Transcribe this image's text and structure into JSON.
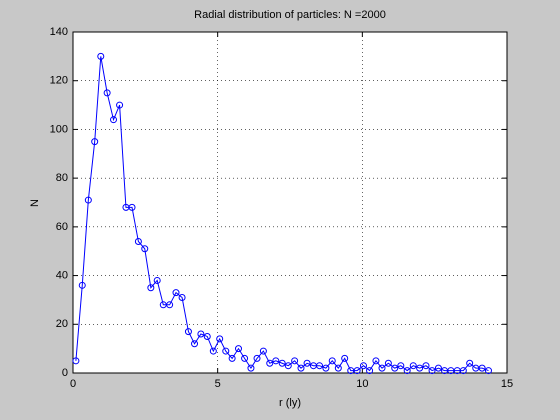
{
  "chart_data": {
    "type": "line",
    "title": "Radial distribution of particles: N =2000",
    "xlabel": "r (ly)",
    "ylabel": "N",
    "x": [
      0.1,
      0.32,
      0.53,
      0.75,
      0.96,
      1.18,
      1.4,
      1.61,
      1.83,
      2.04,
      2.26,
      2.48,
      2.69,
      2.91,
      3.12,
      3.34,
      3.56,
      3.77,
      3.99,
      4.2,
      4.42,
      4.64,
      4.85,
      5.07,
      5.28,
      5.5,
      5.72,
      5.93,
      6.15,
      6.36,
      6.58,
      6.8,
      7.01,
      7.23,
      7.44,
      7.66,
      7.88,
      8.09,
      8.31,
      8.52,
      8.74,
      8.96,
      9.17,
      9.39,
      9.6,
      9.82,
      10.04,
      10.25,
      10.47,
      10.68,
      10.9,
      11.12,
      11.33,
      11.55,
      11.76,
      11.98,
      12.2,
      12.41,
      12.63,
      12.84,
      13.06,
      13.28,
      13.49,
      13.71,
      13.92,
      14.14,
      14.36
    ],
    "series": [
      {
        "color": "#0000ff",
        "marker": "circle",
        "values": [
          5,
          36,
          71,
          95,
          130,
          115,
          104,
          110,
          68,
          68,
          54,
          51,
          35,
          38,
          28,
          28,
          33,
          31,
          17,
          12,
          16,
          15,
          9,
          14,
          9,
          6,
          10,
          6,
          2,
          6,
          9,
          4,
          5,
          4,
          3,
          5,
          2,
          4,
          3,
          3,
          2,
          5,
          2,
          6,
          1,
          1,
          3,
          1,
          5,
          2,
          4,
          2,
          3,
          1,
          3,
          2,
          3,
          1,
          2,
          1,
          1,
          1,
          1,
          4,
          2,
          2,
          1
        ]
      }
    ],
    "xlim": [
      0,
      15
    ],
    "xticks": [
      0,
      5,
      10,
      15
    ],
    "ylim": [
      0,
      140
    ],
    "yticks": [
      0,
      20,
      40,
      60,
      80,
      100,
      120,
      140
    ],
    "grid": true
  }
}
